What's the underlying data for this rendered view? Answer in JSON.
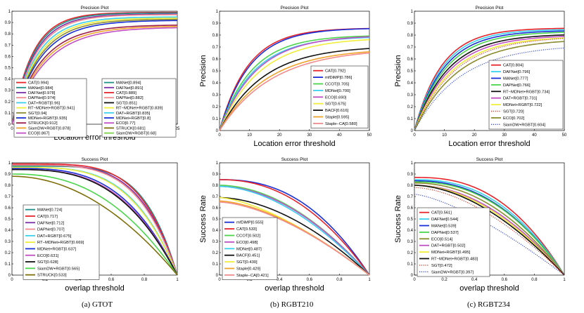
{
  "captions": {
    "a": "(a) GTOT",
    "b": "(b)  RGBT210",
    "c": "(c)  RGBT234"
  },
  "colors": {
    "red": "#e8232a",
    "teal": "#1f8f8a",
    "purple": "#7b2fa8",
    "salmon": "#f28c8c",
    "cyan": "#39d0f0",
    "yellow": "#f1ee3a",
    "olive": "#8a8a2e",
    "blue": "#1930d8",
    "darkred": "#9b1c4a",
    "orange": "#f0a32a",
    "black": "#111111",
    "green": "#4ad64a",
    "magenta": "#c04fc4",
    "gold": "#c9b91e",
    "darkolive": "#7f6f0a",
    "lime": "#7bd24a",
    "violet": "#8b3fb0",
    "pink": "#e85c9b",
    "dotred": "#d6402a",
    "dotblue": "#3a4fd8"
  },
  "chart_data": [
    {
      "id": "gtot_precision",
      "type": "line",
      "title": "Precision Plot",
      "xlabel": "Location error threshold",
      "ylabel": "Precision",
      "xlim": [
        0,
        25
      ],
      "ylim": [
        0,
        1
      ],
      "xticks": [
        0,
        5,
        10,
        15,
        20,
        25
      ],
      "yticks": [
        0,
        0.1,
        0.2,
        0.3,
        0.4,
        0.5,
        0.6,
        0.7,
        0.8,
        0.9,
        1
      ],
      "series": [
        {
          "name": "CAT",
          "value": "0.994",
          "color": "red"
        },
        {
          "name": "MANet",
          "value": "0.984",
          "color": "teal"
        },
        {
          "name": "DAFNet",
          "value": "0.978",
          "color": "purple"
        },
        {
          "name": "DAPNet",
          "value": "0.974",
          "color": "salmon"
        },
        {
          "name": "DAT+RGBT",
          "value": "0.96",
          "color": "cyan"
        },
        {
          "name": "RT−MDNet+RGBT",
          "value": "0.941",
          "color": "yellow"
        },
        {
          "name": "SGT",
          "value": "0.94",
          "color": "olive"
        },
        {
          "name": "MDNet+RGBT",
          "value": "0.935",
          "color": "blue"
        },
        {
          "name": "STRUCK",
          "value": "0.912",
          "color": "darkred"
        },
        {
          "name": "SiamDW+RGBT",
          "value": "0.878",
          "color": "orange"
        },
        {
          "name": "ECO",
          "value": "0.867",
          "color": "magenta"
        }
      ]
    },
    {
      "id": "gtot_precision_b",
      "type": "line",
      "series": [
        {
          "name": "MANet",
          "value": "0.894",
          "color": "teal"
        },
        {
          "name": "DAFNet",
          "value": "0.891",
          "color": "purple"
        },
        {
          "name": "CAT",
          "value": "0.889",
          "color": "red"
        },
        {
          "name": "DAPNet",
          "value": "0.882",
          "color": "salmon"
        },
        {
          "name": "SGT",
          "value": "0.851",
          "color": "black"
        },
        {
          "name": "RT−MDNet+RGBT",
          "value": "0.839",
          "color": "yellow"
        },
        {
          "name": "DAT+RGBT",
          "value": "0.835",
          "color": "cyan"
        },
        {
          "name": "MDNet+RGBT",
          "value": "0.8",
          "color": "blue"
        },
        {
          "name": "ECO",
          "value": "0.77",
          "color": "magenta"
        },
        {
          "name": "STRUCK",
          "value": "0.681",
          "color": "darkolive"
        },
        {
          "name": "SiamDW+RGBT",
          "value": "0.68",
          "color": "lime"
        }
      ]
    },
    {
      "id": "rgbt210_precision",
      "type": "line",
      "title": "Precision Plot",
      "xlabel": "Location error threshold",
      "ylabel": "Precision",
      "xlim": [
        0,
        50
      ],
      "ylim": [
        0,
        1
      ],
      "xticks": [
        0,
        10,
        20,
        30,
        40,
        50
      ],
      "yticks": [
        0,
        0.1,
        0.2,
        0.3,
        0.4,
        0.5,
        0.6,
        0.7,
        0.8,
        0.9,
        1
      ],
      "series": [
        {
          "name": "CAT",
          "value": "0.792",
          "color": "red"
        },
        {
          "name": "mfDiMP",
          "value": "0.786",
          "color": "blue"
        },
        {
          "name": "CCOT",
          "value": "0.705",
          "color": "green"
        },
        {
          "name": "MDNet",
          "value": "0.700",
          "color": "cyan"
        },
        {
          "name": "ECO",
          "value": "0.690",
          "color": "magenta"
        },
        {
          "name": "SGT",
          "value": "0.675",
          "color": "yellow"
        },
        {
          "name": "BACF",
          "value": "0.616",
          "color": "black"
        },
        {
          "name": "Staple",
          "value": "0.595",
          "color": "orange"
        },
        {
          "name": "Staple−CA",
          "value": "0.580",
          "color": "salmon"
        }
      ]
    },
    {
      "id": "rgbt234_precision",
      "type": "line",
      "title": "Precision Plot",
      "xlabel": "Location error threshold",
      "ylabel": "Precision",
      "xlim": [
        0,
        50
      ],
      "ylim": [
        0,
        1
      ],
      "xticks": [
        0,
        10,
        20,
        30,
        40,
        50
      ],
      "yticks": [
        0,
        0.1,
        0.2,
        0.3,
        0.4,
        0.5,
        0.6,
        0.7,
        0.8,
        0.9,
        1
      ],
      "series": [
        {
          "name": "CAT",
          "value": "0.804",
          "color": "red"
        },
        {
          "name": "DAFNet",
          "value": "0.796",
          "color": "cyan"
        },
        {
          "name": "MANet",
          "value": "0.777",
          "color": "blue"
        },
        {
          "name": "DAPNet",
          "value": "0.766",
          "color": "green"
        },
        {
          "name": "RT−MDNet+RGBT",
          "value": "0.734",
          "color": "black"
        },
        {
          "name": "DAT+RGBT",
          "value": "0.731",
          "color": "magenta"
        },
        {
          "name": "MDNet+RGBT",
          "value": "0.722",
          "color": "yellow"
        },
        {
          "name": "SGT",
          "value": "0.720",
          "color": "dotred",
          "style": "dotted"
        },
        {
          "name": "ECO",
          "value": "0.702",
          "color": "olive"
        },
        {
          "name": "SiamDW+RGBT",
          "value": "0.604",
          "color": "dotblue",
          "style": "dotted"
        }
      ]
    },
    {
      "id": "gtot_success",
      "type": "line",
      "title": "Success Plot",
      "xlabel": "overlap threshold",
      "ylabel": "Success Rate",
      "xlim": [
        0,
        1
      ],
      "ylim": [
        0,
        1
      ],
      "xticks": [
        0,
        0.2,
        0.4,
        0.6,
        0.8,
        1
      ],
      "yticks": [
        0,
        0.1,
        0.2,
        0.3,
        0.4,
        0.5,
        0.6,
        0.7,
        0.8,
        0.9,
        1
      ],
      "series": [
        {
          "name": "MANet",
          "value": "0.724",
          "color": "teal"
        },
        {
          "name": "CAT",
          "value": "0.717",
          "color": "red"
        },
        {
          "name": "DAFNet",
          "value": "0.712",
          "color": "purple"
        },
        {
          "name": "DAPNet",
          "value": "0.707",
          "color": "salmon"
        },
        {
          "name": "DAT+RGBT",
          "value": "0.675",
          "color": "cyan"
        },
        {
          "name": "RT−MDNet+RGBT",
          "value": "0.669",
          "color": "yellow"
        },
        {
          "name": "MDNet+RGBT",
          "value": "0.637",
          "color": "blue"
        },
        {
          "name": "ECO",
          "value": "0.631",
          "color": "magenta"
        },
        {
          "name": "SGT",
          "value": "0.628",
          "color": "black"
        },
        {
          "name": "SiamDW+RGBT",
          "value": "0.565",
          "color": "green"
        },
        {
          "name": "STRUCK",
          "value": "0.533",
          "color": "darkolive"
        }
      ]
    },
    {
      "id": "rgbt210_success",
      "type": "line",
      "title": "Success Plot",
      "xlabel": "overlap threshold",
      "ylabel": "Success Rate",
      "xlim": [
        0,
        1
      ],
      "ylim": [
        0,
        1
      ],
      "xticks": [
        0,
        0.2,
        0.4,
        0.6,
        0.8,
        1
      ],
      "yticks": [
        0,
        0.1,
        0.2,
        0.3,
        0.4,
        0.5,
        0.6,
        0.7,
        0.8,
        0.9,
        1
      ],
      "series": [
        {
          "name": "mfDiMP",
          "value": "0.555",
          "color": "blue"
        },
        {
          "name": "CAT",
          "value": "0.533",
          "color": "red"
        },
        {
          "name": "CCOT",
          "value": "0.502",
          "color": "green"
        },
        {
          "name": "ECO",
          "value": "0.498",
          "color": "magenta"
        },
        {
          "name": "MDNet",
          "value": "0.487",
          "color": "cyan"
        },
        {
          "name": "BACF",
          "value": "0.451",
          "color": "black"
        },
        {
          "name": "SGT",
          "value": "0.430",
          "color": "yellow"
        },
        {
          "name": "Staple",
          "value": "0.429",
          "color": "orange"
        },
        {
          "name": "Staple−CA",
          "value": "0.421",
          "color": "salmon"
        }
      ]
    },
    {
      "id": "rgbt234_success",
      "type": "line",
      "title": "Success Plot",
      "xlabel": "overlap threshold",
      "ylabel": "Success Rate",
      "xlim": [
        0,
        1
      ],
      "ylim": [
        0,
        1
      ],
      "xticks": [
        0,
        0.2,
        0.4,
        0.6,
        0.8,
        1
      ],
      "yticks": [
        0,
        0.1,
        0.2,
        0.3,
        0.4,
        0.5,
        0.6,
        0.7,
        0.8,
        0.9,
        1
      ],
      "series": [
        {
          "name": "CAT",
          "value": "0.561",
          "color": "red"
        },
        {
          "name": "DAFNet",
          "value": "0.544",
          "color": "cyan"
        },
        {
          "name": "MANet",
          "value": "0.539",
          "color": "blue"
        },
        {
          "name": "DAPNet",
          "value": "0.537",
          "color": "green"
        },
        {
          "name": "ECO",
          "value": "0.514",
          "color": "olive"
        },
        {
          "name": "DAT+RGBT",
          "value": "0.502",
          "color": "magenta"
        },
        {
          "name": "MDNet+RGBT",
          "value": "0.495",
          "color": "yellow"
        },
        {
          "name": "RT−MDNet+RGBT",
          "value": "0.483",
          "color": "black"
        },
        {
          "name": "SGT",
          "value": "0.472",
          "color": "dotred",
          "style": "dotted"
        },
        {
          "name": "SiamDW+RGBT",
          "value": "0.397",
          "color": "dotblue",
          "style": "dotted"
        }
      ]
    }
  ]
}
